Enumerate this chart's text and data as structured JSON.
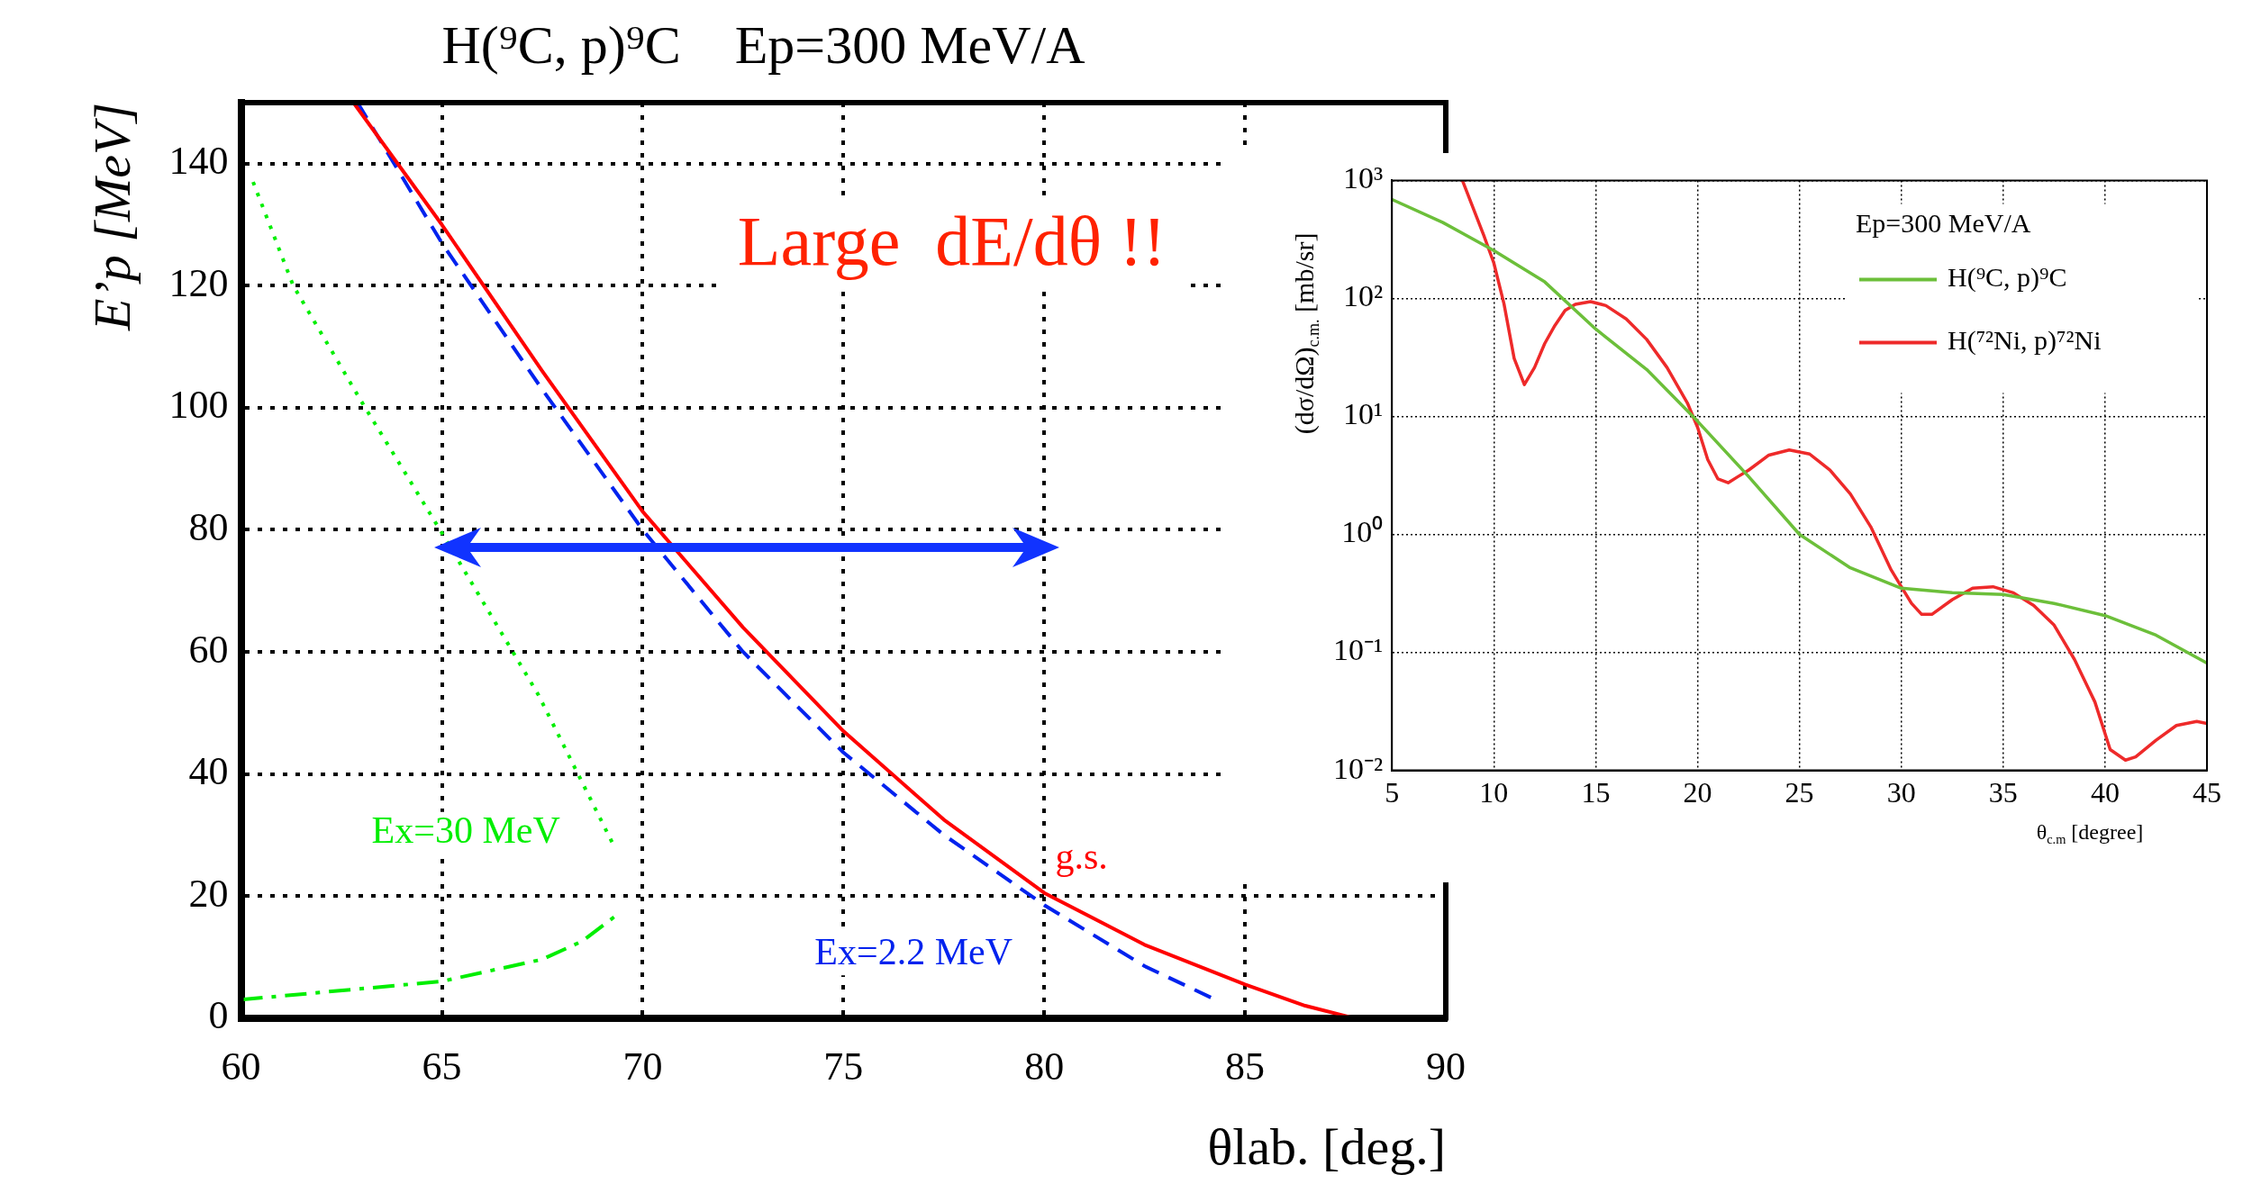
{
  "chart_data": [
    {
      "type": "line",
      "title": "H(⁹C, p)⁹C    Ep=300 MeV/A",
      "xlabel": "θlab. [deg.]",
      "ylabel": "E’p [MeV]",
      "xlim": [
        60,
        90
      ],
      "xticks": [
        60,
        65,
        70,
        75,
        80,
        85,
        90
      ],
      "ylim": [
        0,
        150
      ],
      "yticks": [
        0,
        20,
        40,
        60,
        80,
        100,
        120,
        140
      ],
      "grid": true,
      "marker": "none",
      "legend": false,
      "annotations": [
        "Large  dE/dθ !!"
      ],
      "series": [
        {
          "name": "g.s.",
          "color": "#ff0000",
          "line_style": "solid",
          "x": [
            62.8,
            65,
            67.5,
            70,
            72.5,
            75,
            77.5,
            80,
            82.5,
            85,
            86.5,
            87.7
          ],
          "values": [
            150,
            130,
            106,
            83,
            64,
            47,
            32.5,
            20.5,
            12,
            5.5,
            2,
            0
          ]
        },
        {
          "name": "Ex=2.2 MeV",
          "color": "#0022ee",
          "line_style": "dashed",
          "x": [
            62.9,
            65,
            67.5,
            70,
            72.5,
            75,
            77.5,
            80,
            82.5,
            84.2
          ],
          "values": [
            150,
            127,
            103,
            80,
            60,
            43.5,
            30,
            18.5,
            8.5,
            3.2
          ]
        },
        {
          "name": "Ex=30 MeV",
          "color": "#00ee00",
          "line_style": "dotted",
          "x": [
            60.3,
            61.3,
            63,
            65,
            67.4,
            69.3
          ],
          "values": [
            137,
            120,
            101,
            79.5,
            53,
            28
          ]
        },
        {
          "color": "#00ee00",
          "line_style": "dashdot",
          "x": [
            60,
            65,
            67.5,
            68.5,
            69.3
          ],
          "values": [
            3,
            6,
            9.6,
            12.6,
            16.6
          ]
        }
      ]
    },
    {
      "type": "line",
      "xlabel": "θ$_{c.m}$ [degree]",
      "ylabel": "(dσ/dΩ)$_{c.m.}$ [mb/sr]",
      "legend_title": "Ep=300 MeV/A",
      "legend": "top right",
      "log": "y",
      "grid": true,
      "marker": "none",
      "xlim": [
        5,
        45
      ],
      "xticks": [
        5,
        10,
        15,
        20,
        25,
        30,
        35,
        40,
        45
      ],
      "ylim": [
        0.01,
        1000
      ],
      "yticks": [
        {
          "value": 0.01,
          "label": "10⁻²"
        },
        {
          "value": 0.1,
          "label": "10⁻¹"
        },
        {
          "value": 1,
          "label": "10⁰"
        },
        {
          "value": 10,
          "label": "10¹"
        },
        {
          "value": 100,
          "label": "10²"
        },
        {
          "value": 1000,
          "label": "10³"
        }
      ],
      "series": [
        {
          "name": "H(⁹C, p)⁹C",
          "color": "#6cbf3a",
          "x": [
            5,
            7.5,
            10,
            12.5,
            15,
            17.5,
            20,
            22.5,
            25,
            27.5,
            30,
            32.5,
            35,
            37.5,
            40,
            42.5,
            45
          ],
          "values": [
            690,
            440,
            255,
            138,
            55,
            25,
            9.1,
            3.1,
            1.0,
            0.52,
            0.35,
            0.32,
            0.31,
            0.26,
            0.205,
            0.14,
            0.081
          ]
        },
        {
          "name": "H(⁷²Ni, p)⁷²Ni",
          "color": "#ee2a2a",
          "x": [
            8.46,
            9.5,
            10,
            10.5,
            11,
            11.5,
            12,
            12.5,
            13,
            13.5,
            14,
            14.75,
            15.5,
            16.5,
            17.5,
            18.5,
            19.5,
            20,
            20.5,
            21,
            21.5,
            22,
            22.5,
            23.5,
            24.5,
            25.5,
            26.5,
            27.5,
            28.5,
            29.5,
            30,
            30.5,
            31,
            31.5,
            32.5,
            33.5,
            34.5,
            35.5,
            36.5,
            37.5,
            38.5,
            39.5,
            40.25,
            41,
            41.5,
            42.5,
            43.5,
            44.5,
            45
          ],
          "values": [
            1000,
            345,
            200,
            90,
            31,
            18.6,
            26,
            41.5,
            59,
            79,
            89,
            94,
            87,
            67,
            45,
            26,
            13,
            8.1,
            4.3,
            2.95,
            2.74,
            3.1,
            3.5,
            4.7,
            5.2,
            4.8,
            3.5,
            2.2,
            1.16,
            0.5,
            0.36,
            0.26,
            0.21,
            0.21,
            0.28,
            0.35,
            0.36,
            0.32,
            0.25,
            0.17,
            0.087,
            0.038,
            0.015,
            0.0122,
            0.013,
            0.018,
            0.024,
            0.026,
            0.025
          ]
        }
      ]
    }
  ]
}
